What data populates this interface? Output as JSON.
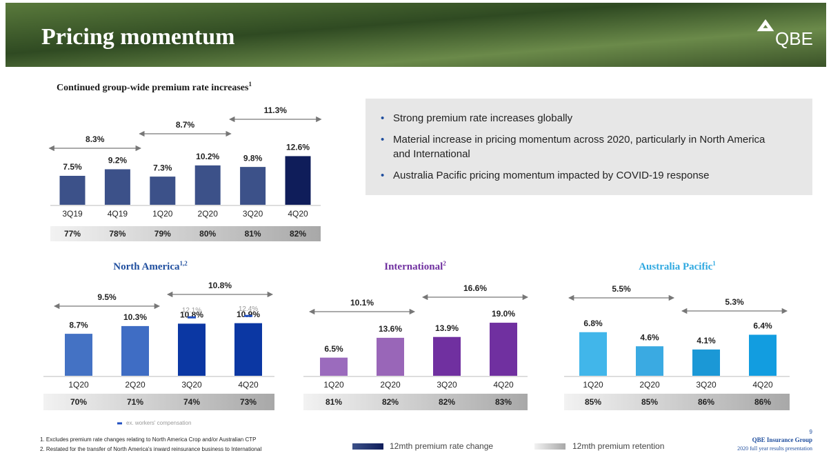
{
  "header": {
    "title": "Pricing momentum",
    "logo": "QBE"
  },
  "bullets": [
    "Strong premium rate increases globally",
    "Material increase in pricing momentum across 2020, particularly in North America and International",
    "Australia Pacific pricing momentum impacted by COVID-19 response"
  ],
  "chart_data": [
    {
      "type": "bar",
      "title": "Continued group-wide premium rate increases",
      "title_sup": "1",
      "title_color": "#1a1a1a",
      "categories": [
        "3Q19",
        "4Q19",
        "1Q20",
        "2Q20",
        "3Q20",
        "4Q20"
      ],
      "values": [
        7.5,
        9.2,
        7.3,
        10.2,
        9.8,
        12.6
      ],
      "value_labels": [
        "7.5%",
        "9.2%",
        "7.3%",
        "10.2%",
        "9.8%",
        "12.6%"
      ],
      "colors": [
        "#3c5189",
        "#3c5189",
        "#3c5189",
        "#3c5189",
        "#3c5189",
        "#0f1d5a"
      ],
      "retention": [
        "77%",
        "78%",
        "79%",
        "80%",
        "81%",
        "82%"
      ],
      "ranges": [
        {
          "label": "8.3%",
          "from": "3Q19",
          "to": "4Q19"
        },
        {
          "label": "8.7%",
          "from": "1Q20",
          "to": "2Q20"
        },
        {
          "label": "11.3%",
          "from": "3Q20",
          "to": "4Q20"
        }
      ]
    },
    {
      "type": "bar",
      "title": "North America",
      "title_sup": "1,2",
      "title_color": "#1f4e9e",
      "categories": [
        "1Q20",
        "2Q20",
        "3Q20",
        "4Q20"
      ],
      "values": [
        8.7,
        10.3,
        10.8,
        10.9
      ],
      "value_labels": [
        "8.7%",
        "10.3%",
        "10.8%",
        "10.9%"
      ],
      "colors": [
        "#4472c4",
        "#3f6dc4",
        "#0b37a3",
        "#0b37a3"
      ],
      "ex_values": [
        null,
        null,
        12.1,
        12.4
      ],
      "ex_value_labels": [
        null,
        null,
        "12.1%",
        "12.4%"
      ],
      "ex_color": "#1f4ec0",
      "ex_label": "ex. workers' compensation",
      "retention": [
        "70%",
        "71%",
        "74%",
        "73%"
      ],
      "ranges": [
        {
          "label": "9.5%",
          "from": "1Q20",
          "to": "2Q20"
        },
        {
          "label": "10.8%",
          "from": "3Q20",
          "to": "4Q20"
        }
      ]
    },
    {
      "type": "bar",
      "title": "International",
      "title_sup": "2",
      "title_color": "#7030a0",
      "categories": [
        "1Q20",
        "2Q20",
        "3Q20",
        "4Q20"
      ],
      "values": [
        6.5,
        13.6,
        13.9,
        19.0
      ],
      "value_labels": [
        "6.5%",
        "13.6%",
        "13.9%",
        "19.0%"
      ],
      "colors": [
        "#9b6bbd",
        "#9966b8",
        "#7030a0",
        "#7030a0"
      ],
      "retention": [
        "81%",
        "82%",
        "82%",
        "83%"
      ],
      "ranges": [
        {
          "label": "10.1%",
          "from": "1Q20",
          "to": "2Q20"
        },
        {
          "label": "16.6%",
          "from": "3Q20",
          "to": "4Q20"
        }
      ]
    },
    {
      "type": "bar",
      "title": "Australia Pacific",
      "title_sup": "1",
      "title_color": "#2ea8e0",
      "categories": [
        "1Q20",
        "2Q20",
        "3Q20",
        "4Q20"
      ],
      "values": [
        6.8,
        4.6,
        4.1,
        6.4
      ],
      "value_labels": [
        "6.8%",
        "4.6%",
        "4.1%",
        "6.4%"
      ],
      "colors": [
        "#41b6ea",
        "#3aaae2",
        "#1b98d6",
        "#129de0"
      ],
      "retention": [
        "85%",
        "85%",
        "86%",
        "86%"
      ],
      "ranges": [
        {
          "label": "5.5%",
          "from": "1Q20",
          "to": "2Q20"
        },
        {
          "label": "5.3%",
          "from": "3Q20",
          "to": "4Q20"
        }
      ]
    }
  ],
  "footnotes": [
    "1.   Excludes premium rate changes relating to North America Crop and/or Australian CTP",
    "2.   Restated for the transfer of North America's inward reinsurance business to International"
  ],
  "legend": [
    "12mth premium rate change",
    "12mth premium retention"
  ],
  "footer": {
    "page": "9",
    "company": "QBE Insurance Group",
    "subtitle": "2020 full year results presentation"
  }
}
